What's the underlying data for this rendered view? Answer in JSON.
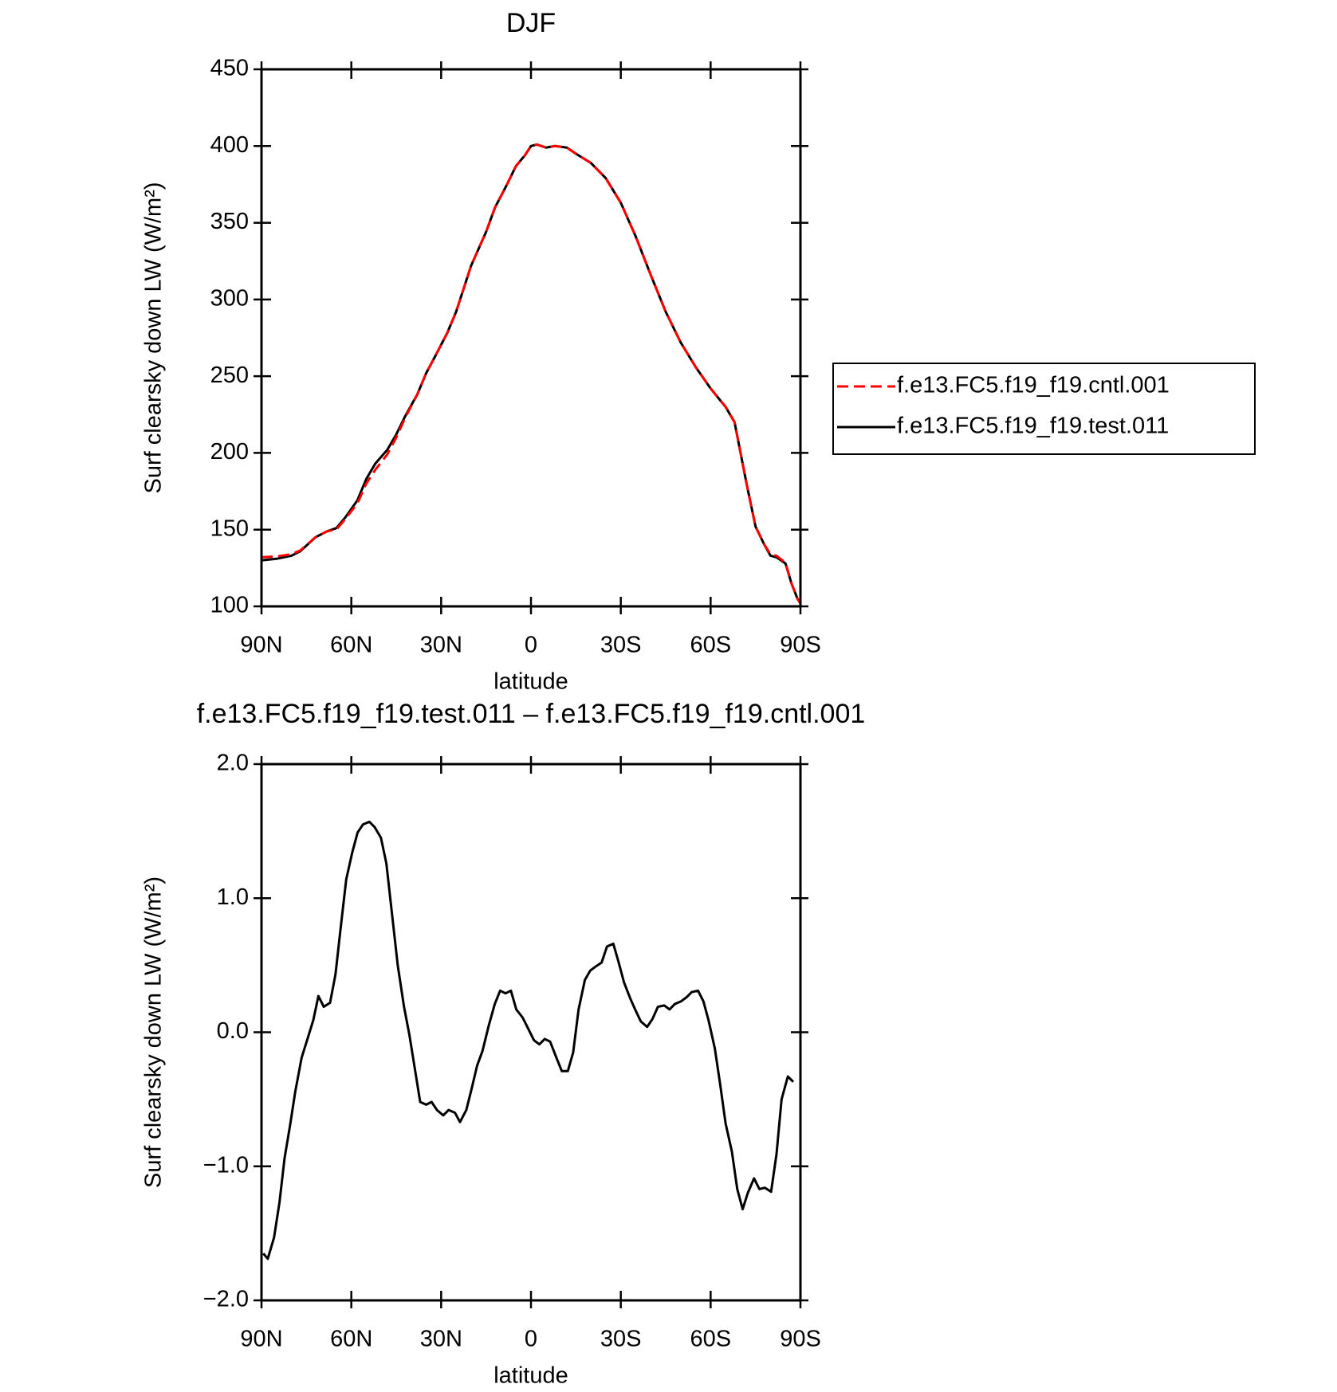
{
  "chart_data": [
    {
      "type": "line",
      "title": "DJF",
      "xlabel": "latitude",
      "ylabel": "Surf clearsky down LW (W/m²)",
      "xlim": [
        90,
        -90
      ],
      "xticks": [
        {
          "value": 90,
          "label": "90N"
        },
        {
          "value": 60,
          "label": "60N"
        },
        {
          "value": 30,
          "label": "30N"
        },
        0,
        {
          "value": -30,
          "label": "30S"
        },
        {
          "value": -60,
          "label": "60S"
        },
        {
          "value": -90,
          "label": "90S"
        }
      ],
      "ylim": [
        100,
        450
      ],
      "yticks": [
        100,
        150,
        200,
        250,
        300,
        350,
        400,
        450
      ],
      "legend": "right",
      "x": [
        90,
        85,
        80,
        77,
        72,
        68,
        65,
        62,
        58,
        55,
        52,
        48,
        45,
        42,
        38,
        35,
        32,
        28,
        25,
        22,
        20,
        15,
        12,
        8,
        5,
        2,
        0,
        -2,
        -5,
        -8,
        -12,
        -15,
        -20,
        -25,
        -30,
        -35,
        -40,
        -45,
        -50,
        -55,
        -60,
        -65,
        -68,
        -70,
        -72,
        -75,
        -78,
        -80,
        -82,
        -85,
        -87,
        -89,
        -90
      ],
      "series": [
        {
          "name": "f.e13.FC5.f19_f19.cntl.001",
          "color": "#ff0000",
          "style": "dashed",
          "values": [
            132,
            132.5,
            134,
            136.5,
            145,
            149,
            150,
            157,
            167,
            180,
            189,
            199,
            210,
            223,
            238,
            252,
            263,
            278,
            292,
            310,
            322,
            344,
            360,
            375,
            387,
            394,
            400,
            401,
            399,
            400,
            399,
            395,
            389,
            379,
            363,
            341,
            316,
            292,
            272,
            256,
            242,
            230,
            220,
            200,
            180,
            152,
            140,
            134,
            133,
            128.5,
            115,
            105,
            102
          ]
        },
        {
          "name": "f.e13.FC5.f19_f19.test.011",
          "color": "#000000",
          "style": "solid",
          "values": [
            130,
            131,
            133,
            136,
            145,
            149,
            151,
            158,
            169,
            183,
            193,
            202,
            212,
            224,
            238,
            252,
            263,
            278,
            292,
            310,
            322,
            344,
            360,
            375,
            387,
            394,
            400,
            401,
            399,
            400,
            399,
            395,
            389,
            379,
            363,
            341,
            316,
            292,
            272,
            256,
            242,
            230,
            220,
            200,
            180,
            152,
            140,
            133,
            132,
            128,
            115,
            105,
            102
          ]
        }
      ]
    },
    {
      "type": "line",
      "title": "f.e13.FC5.f19_f19.test.011 – f.e13.FC5.f19_f19.cntl.001",
      "xlabel": "latitude",
      "ylabel": "Surf clearsky down LW (W/m²)",
      "xlim": [
        90,
        -90
      ],
      "xticks": [
        {
          "value": 90,
          "label": "90N"
        },
        {
          "value": 60,
          "label": "60N"
        },
        {
          "value": 30,
          "label": "30N"
        },
        0,
        {
          "value": -30,
          "label": "30S"
        },
        {
          "value": -60,
          "label": "60S"
        },
        {
          "value": -90,
          "label": "90S"
        }
      ],
      "ylim": [
        -2,
        2
      ],
      "yticks": [
        {
          "value": -2,
          "label": "−2.0"
        },
        {
          "value": -1,
          "label": "−1.0"
        },
        {
          "value": 0,
          "label": "0.0"
        },
        {
          "value": 1,
          "label": "1.0"
        },
        {
          "value": 2,
          "label": "2.0"
        }
      ],
      "x": [
        89.4,
        87.9,
        85.8,
        84.0,
        82.3,
        80.5,
        78.7,
        76.6,
        74.5,
        72.7,
        71.0,
        69.2,
        67.1,
        65.3,
        63.5,
        61.7,
        59.7,
        57.9,
        56.1,
        54.0,
        52.2,
        50.1,
        48.3,
        46.6,
        44.5,
        42.4,
        40.6,
        38.8,
        37.0,
        35.0,
        33.2,
        31.4,
        29.3,
        27.5,
        25.4,
        23.7,
        21.6,
        19.8,
        18.0,
        16.2,
        14.1,
        12.1,
        10.3,
        8.5,
        6.7,
        4.9,
        2.8,
        1.0,
        -1.0,
        -2.8,
        -4.6,
        -6.4,
        -8.5,
        -10.3,
        -12.3,
        -14.1,
        -15.9,
        -18.0,
        -19.8,
        -21.6,
        -23.6,
        -25.4,
        -27.5,
        -29.3,
        -31.1,
        -33.2,
        -35.0,
        -36.7,
        -38.8,
        -40.6,
        -42.4,
        -44.5,
        -46.3,
        -48.0,
        -50.1,
        -51.9,
        -53.7,
        -55.8,
        -57.6,
        -59.3,
        -61.4,
        -63.2,
        -65.0,
        -67.1,
        -68.9,
        -70.7,
        -72.4,
        -74.5,
        -76.3,
        -78.1,
        -80.2,
        -82.0,
        -83.7,
        -85.8,
        -87.6
      ],
      "series": [
        {
          "name": "f.e13.FC5.f19_f19.test.011",
          "color": "#000000",
          "style": "solid",
          "values": [
            -1.65,
            -1.69,
            -1.53,
            -1.27,
            -0.94,
            -0.7,
            -0.44,
            -0.19,
            -0.04,
            0.09,
            0.27,
            0.19,
            0.22,
            0.43,
            0.79,
            1.14,
            1.34,
            1.49,
            1.55,
            1.57,
            1.53,
            1.45,
            1.26,
            0.92,
            0.5,
            0.19,
            -0.02,
            -0.27,
            -0.52,
            -0.54,
            -0.52,
            -0.58,
            -0.62,
            -0.58,
            -0.6,
            -0.67,
            -0.58,
            -0.42,
            -0.25,
            -0.14,
            0.05,
            0.21,
            0.31,
            0.29,
            0.31,
            0.17,
            0.11,
            0.03,
            -0.06,
            -0.09,
            -0.05,
            -0.07,
            -0.19,
            -0.29,
            -0.29,
            -0.15,
            0.17,
            0.39,
            0.46,
            0.49,
            0.52,
            0.64,
            0.66,
            0.52,
            0.37,
            0.25,
            0.16,
            0.08,
            0.04,
            0.1,
            0.19,
            0.2,
            0.17,
            0.21,
            0.23,
            0.26,
            0.3,
            0.31,
            0.23,
            0.09,
            -0.12,
            -0.39,
            -0.68,
            -0.89,
            -1.17,
            -1.32,
            -1.2,
            -1.09,
            -1.17,
            -1.16,
            -1.19,
            -0.91,
            -0.5,
            -0.33,
            -0.37
          ]
        }
      ]
    }
  ]
}
